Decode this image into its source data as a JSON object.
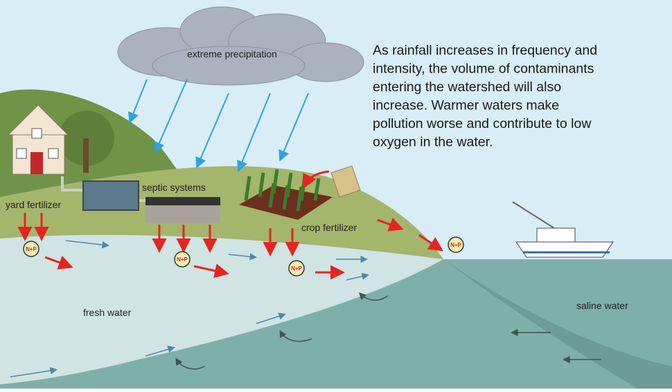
{
  "labels": {
    "cloud": "extreme precipitation",
    "yard": "yard fertilizer",
    "septic": "septic systems",
    "crop": "crop fertilizer",
    "fresh": "fresh water",
    "saline": "saline water"
  },
  "description": [
    "As rainfall increases in frequency and",
    "intensity, the volume of contaminants",
    "entering the watershed will also",
    "increase. Warmer waters make",
    "pollution worse and contribute to low",
    "oxygen in the water."
  ],
  "nutrient_markers": [
    "N+P",
    "N+P",
    "N+P",
    "N+P"
  ]
}
